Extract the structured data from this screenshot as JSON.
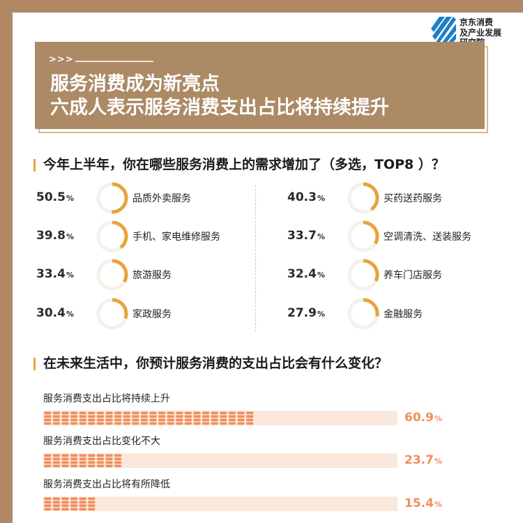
{
  "logo": {
    "lines": [
      "京东消费",
      "及产业发展",
      "研究院"
    ]
  },
  "header": {
    "chevrons": ">>>",
    "title_line1": "服务消费成为新亮点",
    "title_line2": "六成人表示服务消费支出占比将持续提升"
  },
  "section1": {
    "question": "今年上半年，你在哪些服务消费上的需求增加了（多选，TOP8 ）？"
  },
  "section2": {
    "question": "在未来生活中，你预计服务消费的支出占比会有什么变化？"
  },
  "colors": {
    "accent": "#e8a33b",
    "banner": "#ac8a66",
    "bar_fill": "#ef8e5e",
    "bar_track": "#fbe8dc"
  },
  "chart_data": [
    {
      "type": "pie",
      "title": "今年上半年，你在哪些服务消费上的需求增加了（多选，TOP8 ）？",
      "unit": "%",
      "categories": [
        "品质外卖服务",
        "买药送药服务",
        "手机、家电维修服务",
        "空调清洗、送装服务",
        "旅游服务",
        "养车门店服务",
        "家政服务",
        "金融服务"
      ],
      "values": [
        50.5,
        40.3,
        39.8,
        33.7,
        33.4,
        32.4,
        30.4,
        27.9
      ],
      "value_labels": [
        "50.5",
        "40.3",
        "39.8",
        "33.7",
        "33.4",
        "32.4",
        "30.4",
        "27.9"
      ]
    },
    {
      "type": "bar",
      "title": "在未来生活中，你预计服务消费的支出占比会有什么变化？",
      "unit": "%",
      "categories": [
        "服务消费支出占比将持续上升",
        "服务消费支出占比变化不大",
        "服务消费支出占比将有所降低"
      ],
      "values": [
        60.9,
        23.7,
        15.4
      ],
      "value_labels": [
        "60.9",
        "23.7",
        "15.4"
      ]
    }
  ]
}
